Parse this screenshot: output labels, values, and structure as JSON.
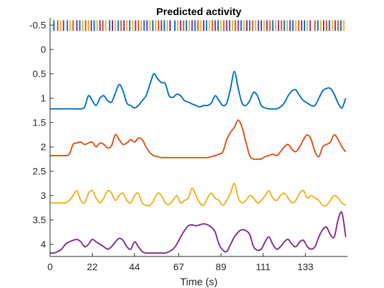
{
  "chart_data": {
    "type": "line",
    "title": "Predicted activity",
    "xlabel": "Time (s)",
    "ylabel": "",
    "xlim": [
      0,
      155
    ],
    "ylim": [
      -0.65,
      4.25
    ],
    "y_reversed": true,
    "grid": false,
    "legend": "none",
    "x_ticks": [
      0,
      22,
      44,
      67,
      89,
      111,
      133
    ],
    "y_ticks": [
      -0.5,
      0,
      0.5,
      1,
      1.5,
      2,
      2.5,
      3,
      3.5,
      4
    ],
    "event_raster": {
      "y_top": -0.6,
      "y_bottom": -0.38,
      "colors": [
        "#0072BD",
        "#D95319",
        "#EDB120",
        "#7E2F8E"
      ],
      "events": [
        [
          2,
          0
        ],
        [
          4,
          1
        ],
        [
          5.5,
          2
        ],
        [
          7,
          3
        ],
        [
          9,
          0
        ],
        [
          10.5,
          2
        ],
        [
          12,
          1
        ],
        [
          14,
          3
        ],
        [
          15.5,
          0
        ],
        [
          17,
          2
        ],
        [
          18.5,
          1
        ],
        [
          20,
          2
        ],
        [
          21.5,
          3
        ],
        [
          23,
          0
        ],
        [
          24.5,
          2
        ],
        [
          26,
          3
        ],
        [
          27.5,
          1
        ],
        [
          29,
          2
        ],
        [
          31,
          0
        ],
        [
          32.5,
          3
        ],
        [
          34,
          2
        ],
        [
          35.5,
          0
        ],
        [
          37,
          1
        ],
        [
          38.5,
          3
        ],
        [
          40,
          2
        ],
        [
          41.5,
          0
        ],
        [
          43,
          2
        ],
        [
          44.5,
          3
        ],
        [
          46,
          1
        ],
        [
          47.5,
          2
        ],
        [
          49,
          0
        ],
        [
          50.5,
          3
        ],
        [
          52,
          2
        ],
        [
          53.5,
          0
        ],
        [
          55,
          2
        ],
        [
          56.5,
          1
        ],
        [
          58,
          3
        ],
        [
          59.5,
          0
        ],
        [
          61,
          2
        ],
        [
          62.5,
          3
        ],
        [
          65,
          0
        ],
        [
          66.5,
          2
        ],
        [
          68,
          3
        ],
        [
          69.5,
          1
        ],
        [
          71,
          0
        ],
        [
          72.5,
          2
        ],
        [
          74,
          3
        ],
        [
          75.5,
          0
        ],
        [
          77,
          1
        ],
        [
          78.5,
          2
        ],
        [
          80,
          3
        ],
        [
          81.5,
          0
        ],
        [
          83,
          2
        ],
        [
          84.5,
          1
        ],
        [
          86,
          3
        ],
        [
          87.5,
          0
        ],
        [
          89,
          2
        ],
        [
          90.5,
          1
        ],
        [
          92,
          3
        ],
        [
          93.5,
          0
        ],
        [
          95,
          2
        ],
        [
          96.5,
          1
        ],
        [
          98,
          3
        ],
        [
          99.5,
          0
        ],
        [
          101,
          2
        ],
        [
          102.5,
          3
        ],
        [
          104,
          0
        ],
        [
          105.5,
          1
        ],
        [
          107,
          2
        ],
        [
          108.5,
          3
        ],
        [
          110,
          0
        ],
        [
          111.5,
          2
        ],
        [
          113,
          3
        ],
        [
          114.5,
          1
        ],
        [
          116,
          0
        ],
        [
          117.5,
          2
        ],
        [
          119,
          3
        ],
        [
          120.5,
          1
        ],
        [
          122,
          0
        ],
        [
          123.5,
          2
        ],
        [
          125,
          3
        ],
        [
          126.5,
          0
        ],
        [
          128,
          2
        ],
        [
          129.5,
          1
        ],
        [
          131,
          3
        ],
        [
          132.5,
          0
        ],
        [
          134,
          2
        ],
        [
          135.5,
          3
        ],
        [
          138,
          1
        ],
        [
          139.5,
          0
        ],
        [
          141,
          2
        ],
        [
          142.5,
          3
        ],
        [
          144,
          1
        ],
        [
          145.5,
          0
        ],
        [
          147,
          2
        ],
        [
          148.5,
          3
        ],
        [
          150,
          1
        ],
        [
          151.5,
          0
        ],
        [
          153,
          2
        ]
      ]
    },
    "x": [
      0,
      2,
      4,
      6,
      8,
      10,
      12,
      14,
      16,
      18,
      20,
      22,
      24,
      26,
      28,
      30,
      32,
      34,
      36,
      38,
      40,
      42,
      44,
      46,
      48,
      50,
      52,
      54,
      56,
      58,
      60,
      62,
      64,
      66,
      68,
      70,
      72,
      74,
      76,
      78,
      80,
      82,
      84,
      86,
      88,
      90,
      92,
      94,
      96,
      98,
      100,
      102,
      104,
      106,
      108,
      110,
      112,
      114,
      116,
      118,
      120,
      122,
      124,
      126,
      128,
      130,
      132,
      134,
      136,
      138,
      140,
      142,
      144,
      146,
      148,
      150,
      152,
      154
    ],
    "series": [
      {
        "color": "#0072BD",
        "values": [
          1.22,
          1.22,
          1.22,
          1.22,
          1.22,
          1.22,
          1.22,
          1.22,
          1.22,
          1.18,
          0.95,
          1.05,
          1.15,
          1.0,
          0.95,
          1.05,
          1.08,
          0.9,
          0.72,
          0.85,
          1.1,
          1.15,
          1.2,
          1.15,
          1.05,
          0.95,
          0.72,
          0.5,
          0.6,
          0.68,
          0.7,
          0.95,
          0.98,
          0.92,
          0.95,
          1.05,
          1.08,
          1.12,
          1.15,
          1.18,
          1.15,
          1.15,
          1.1,
          0.95,
          1.05,
          1.15,
          1.1,
          0.8,
          0.45,
          0.8,
          1.1,
          1.15,
          1.05,
          0.88,
          0.95,
          1.15,
          1.2,
          1.22,
          1.22,
          1.22,
          1.18,
          1.1,
          0.95,
          0.85,
          0.83,
          0.95,
          1.05,
          1.1,
          1.15,
          1.15,
          1.0,
          0.85,
          0.8,
          0.8,
          0.92,
          1.1,
          1.2,
          1.0
        ]
      },
      {
        "color": "#D95319",
        "values": [
          2.18,
          2.18,
          2.18,
          2.18,
          2.18,
          2.15,
          1.95,
          1.92,
          1.9,
          1.95,
          1.92,
          1.9,
          2.0,
          1.92,
          1.95,
          2.02,
          1.98,
          1.75,
          1.85,
          1.95,
          1.92,
          1.85,
          1.9,
          1.82,
          1.85,
          2.0,
          2.12,
          2.18,
          2.2,
          2.22,
          2.22,
          2.22,
          2.22,
          2.22,
          2.22,
          2.22,
          2.22,
          2.22,
          2.22,
          2.22,
          2.22,
          2.22,
          2.2,
          2.18,
          2.15,
          2.1,
          1.85,
          1.7,
          1.6,
          1.45,
          1.6,
          1.9,
          2.18,
          2.25,
          2.25,
          2.25,
          2.2,
          2.18,
          2.15,
          2.18,
          2.1,
          2.0,
          1.95,
          2.05,
          2.1,
          2.0,
          1.85,
          1.75,
          1.85,
          2.1,
          2.2,
          2.0,
          1.95,
          1.9,
          1.75,
          1.85,
          2.0,
          2.1
        ]
      },
      {
        "color": "#EDB120",
        "values": [
          3.15,
          3.15,
          3.15,
          3.15,
          3.15,
          3.1,
          3.0,
          2.9,
          3.1,
          3.15,
          2.95,
          2.9,
          3.05,
          3.15,
          3.05,
          2.9,
          2.95,
          3.1,
          3.0,
          2.95,
          3.1,
          3.15,
          3.0,
          2.95,
          3.15,
          3.2,
          3.2,
          3.1,
          2.95,
          3.0,
          3.15,
          3.18,
          3.1,
          3.0,
          3.15,
          3.1,
          3.05,
          2.85,
          3.0,
          3.15,
          3.2,
          3.05,
          2.95,
          3.05,
          3.1,
          3.2,
          3.1,
          2.95,
          2.75,
          3.05,
          3.15,
          3.1,
          3.0,
          3.05,
          3.15,
          3.1,
          3.0,
          2.9,
          3.05,
          3.1,
          3.0,
          2.95,
          3.05,
          3.15,
          3.1,
          2.95,
          2.9,
          3.05,
          3.0,
          3.05,
          3.1,
          3.2,
          3.2,
          3.1,
          3.0,
          3.05,
          3.15,
          3.2
        ]
      },
      {
        "color": "#7E2F8E",
        "values": [
          4.18,
          4.18,
          4.15,
          4.1,
          4.0,
          3.95,
          3.92,
          3.9,
          3.95,
          4.05,
          4.0,
          3.9,
          3.95,
          4.0,
          4.05,
          4.1,
          4.05,
          3.95,
          3.88,
          3.92,
          4.05,
          4.1,
          3.95,
          4.05,
          4.15,
          4.18,
          4.18,
          4.18,
          4.18,
          4.18,
          4.18,
          4.15,
          4.1,
          4.0,
          3.85,
          3.72,
          3.62,
          3.6,
          3.62,
          3.6,
          3.58,
          3.6,
          3.65,
          3.75,
          4.0,
          4.12,
          4.15,
          4.0,
          3.85,
          3.75,
          3.7,
          3.72,
          3.8,
          4.05,
          4.12,
          4.1,
          3.95,
          3.85,
          4.0,
          4.1,
          4.05,
          3.95,
          3.9,
          4.0,
          4.05,
          3.95,
          3.92,
          4.05,
          4.1,
          4.05,
          3.85,
          3.7,
          3.65,
          3.8,
          3.85,
          3.5,
          3.35,
          3.85
        ]
      }
    ]
  }
}
